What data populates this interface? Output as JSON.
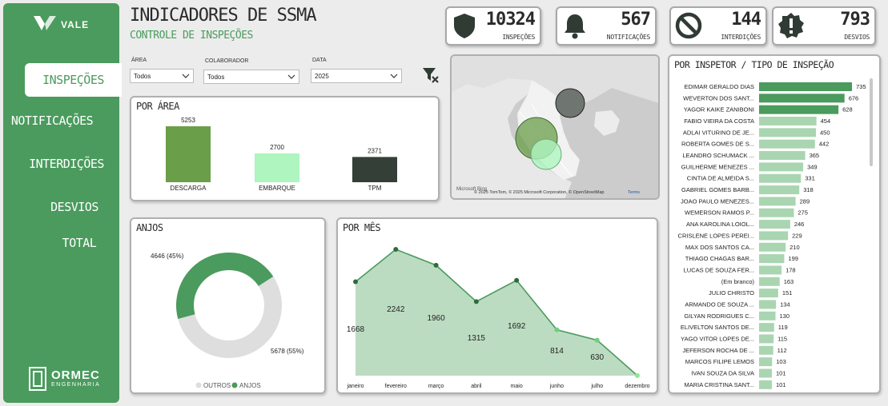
{
  "sidebar": {
    "brand": "VALE",
    "items": [
      {
        "label": "INSPEÇÕES",
        "active": true
      },
      {
        "label": "NOTIFICAÇÕES",
        "active": false
      },
      {
        "label": "INTERDIÇÕES",
        "active": false
      },
      {
        "label": "DESVIOS",
        "active": false
      },
      {
        "label": "TOTAL",
        "active": false
      }
    ],
    "company": "ORMEC",
    "company_sub": "ENGENHARIA"
  },
  "header": {
    "title": "INDICADORES DE SSMA",
    "subtitle": "CONTROLE DE INSPEÇÕES"
  },
  "kpis": [
    {
      "value": "10324",
      "label": "INSPEÇÕES",
      "icon": "shield-icon"
    },
    {
      "value": "567",
      "label": "NOTIFICAÇÕES",
      "icon": "bell-icon"
    },
    {
      "value": "144",
      "label": "INTERDIÇÕES",
      "icon": "prohibited-icon"
    },
    {
      "value": "793",
      "label": "DESVIOS",
      "icon": "alert-icon"
    }
  ],
  "filters": {
    "area": {
      "label": "ÁREA",
      "value": "Todos"
    },
    "colaborador": {
      "label": "COLABORADOR",
      "value": "Todos"
    },
    "data": {
      "label": "DATA",
      "value": "2025"
    }
  },
  "colors": {
    "primary": "#4a9b5d",
    "light": "#a8dcae",
    "dark": "#2f3b33",
    "gray": "#dedede"
  },
  "map": {
    "attribution": "© 2025 TomTom, © 2025 Microsoft Corporation, © OpenStreetMap",
    "terms": "Terms",
    "brand": "Microsoft Bing"
  },
  "chart_data": [
    {
      "id": "por-area",
      "type": "bar",
      "title": "POR ÁREA",
      "categories": [
        "DESCARGA",
        "EMBARQUE",
        "TPM"
      ],
      "values": [
        5253,
        2700,
        2371
      ],
      "value_labels": [
        "5253",
        "2700",
        "2371"
      ],
      "colors": [
        "#6a9e48",
        "#aef5bf",
        "#343f38"
      ],
      "ylim": [
        0,
        5253
      ]
    },
    {
      "id": "anjos",
      "type": "pie",
      "title": "ANJOS",
      "donut": true,
      "slices": [
        {
          "name": "ANJOS",
          "value": 4646,
          "label": "4646 (45%)",
          "color": "#4a9b5d"
        },
        {
          "name": "OUTROS",
          "value": 5678,
          "label": "5678 (55%)",
          "color": "#dedede"
        }
      ],
      "legend": [
        "OUTROS",
        "ANJOS"
      ],
      "legend_position": "bottom"
    },
    {
      "id": "por-mes",
      "type": "area",
      "title": "POR MÊS",
      "categories": [
        "janeiro",
        "fevereiro",
        "março",
        "abril",
        "maio",
        "junho",
        "julho",
        "dezembro"
      ],
      "values": [
        1668,
        2242,
        1960,
        1315,
        1692,
        814,
        630,
        0
      ],
      "value_labels": [
        "1668",
        "2242",
        "1960",
        "1315",
        "1692",
        "814",
        "630",
        ""
      ],
      "ylim": [
        0,
        2242
      ]
    },
    {
      "id": "por-inspetor",
      "type": "bar",
      "orientation": "horizontal",
      "title": "POR INSPETOR / TIPO DE INSPEÇÃO",
      "categories": [
        "EDIMAR GERALDO DIAS",
        "WEVERTON DOS SANT...",
        "YAGOR KAIKE ZANIBONI",
        "FABIO VIEIRA DA COSTA",
        "ADLAI VITURINO DE JE...",
        "ROBERTA GOMES DE S...",
        "LEANDRO SCHUMACK ...",
        "GUILHERME MENEZES ...",
        "CINTIA DE ALMEIDA S...",
        "GABRIEL GOMES BARB...",
        "JOAO PAULO MENEZES...",
        "WEMERSON RAMOS P...",
        "ANA KAROLINA LOIOL...",
        "CRISLENE LOPES PEREI...",
        "MAX DOS SANTOS CA...",
        "THIAGO CHAGAS BAR...",
        "LUCAS DE SOUZA FER...",
        "(Em branco)",
        "JULIO CHRISTO",
        "ARMANDO DE SOUZA ...",
        "GILYAN RODRIGUES C...",
        "ELIVELTON SANTOS DE...",
        "YAGO VITOR LOPES DE...",
        "JEFERSON ROCHA DE ...",
        "MARCOS FILIPE LEMOS",
        "IVAN SOUZA DA SILVA",
        "MARIA CRISTINA SANT..."
      ],
      "values": [
        735,
        676,
        628,
        454,
        450,
        442,
        365,
        349,
        331,
        318,
        289,
        275,
        246,
        229,
        210,
        199,
        178,
        163,
        151,
        134,
        130,
        119,
        115,
        112,
        103,
        101,
        101
      ],
      "value_labels": [
        "735",
        "676",
        "628",
        "454",
        "450",
        "442",
        "365",
        "349",
        "331",
        "318",
        "289",
        "275",
        "246",
        "229",
        "210",
        "199",
        "178",
        "163",
        "151",
        "134",
        "130",
        "119",
        "115",
        "112",
        "103",
        "101",
        "101"
      ],
      "ylim": [
        0,
        735
      ]
    }
  ]
}
